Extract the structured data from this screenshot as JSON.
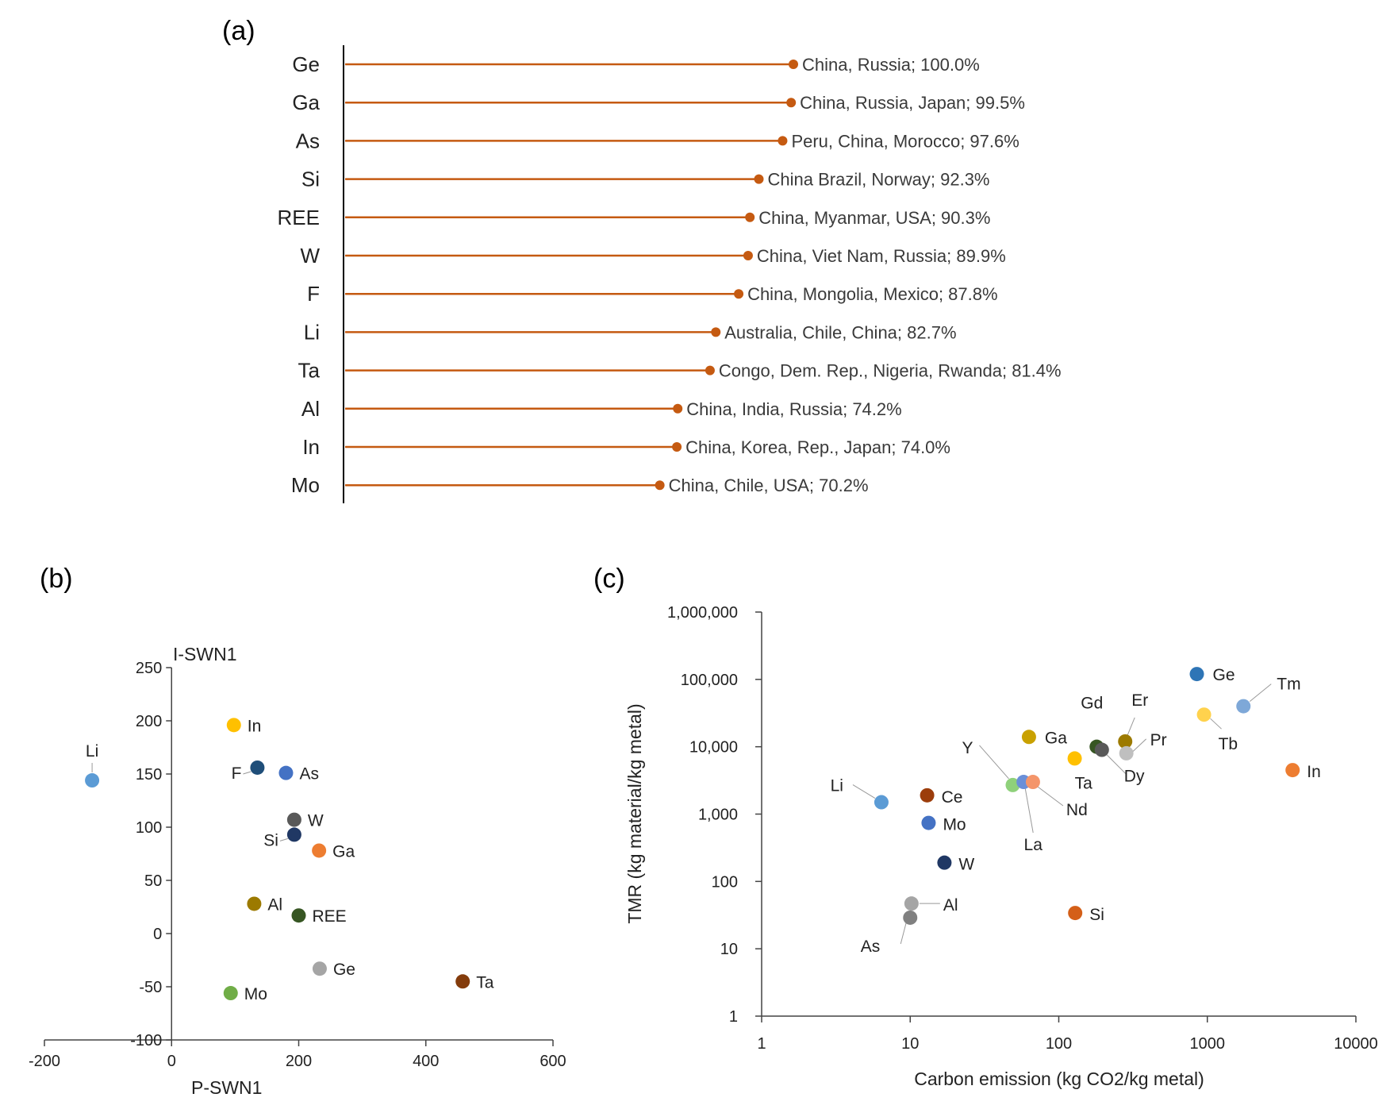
{
  "chart_data": [
    {
      "panel": "(a)",
      "type": "bar",
      "subtype": "lollipop",
      "color": "#C55A11",
      "xlim": [
        0,
        100
      ],
      "categories": [
        "Ge",
        "Ga",
        "As",
        "Si",
        "REE",
        "W",
        "F",
        "Li",
        "Ta",
        "Al",
        "In",
        "Mo"
      ],
      "values": [
        100.0,
        99.5,
        97.6,
        92.3,
        90.3,
        89.9,
        87.8,
        82.7,
        81.4,
        74.2,
        74.0,
        70.2
      ],
      "labels": [
        "China, Russia; 100.0%",
        "China, Russia, Japan; 99.5%",
        "Peru, China, Morocco; 97.6%",
        "China Brazil, Norway; 92.3%",
        "China, Myanmar, USA; 90.3%",
        "China, Viet Nam, Russia; 89.9%",
        "China, Mongolia, Mexico; 87.8%",
        "Australia, Chile, China; 82.7%",
        "Congo, Dem. Rep., Nigeria, Rwanda; 81.4%",
        "China, India, Russia; 74.2%",
        "China, Korea, Rep., Japan; 74.0%",
        "China, Chile, USA; 70.2%"
      ]
    },
    {
      "panel": "(b)",
      "type": "scatter",
      "xlabel": "P-SWN1",
      "ylabel": "I-SWN1",
      "xlim": [
        -200,
        600
      ],
      "ylim": [
        -100,
        250
      ],
      "xticks": [
        -200,
        0,
        200,
        400,
        600
      ],
      "yticks": [
        250,
        200,
        150,
        100,
        50,
        0,
        -50,
        -100
      ],
      "points": [
        {
          "label": "Li",
          "x": -125,
          "y": 144,
          "color": "#5B9BD5"
        },
        {
          "label": "In",
          "x": 98,
          "y": 196,
          "color": "#FFC000"
        },
        {
          "label": "F",
          "x": 135,
          "y": 156,
          "color": "#1F4E79"
        },
        {
          "label": "As",
          "x": 180,
          "y": 151,
          "color": "#4472C4"
        },
        {
          "label": "W",
          "x": 193,
          "y": 107,
          "color": "#595959"
        },
        {
          "label": "Si",
          "x": 193,
          "y": 93,
          "color": "#203864"
        },
        {
          "label": "Ga",
          "x": 232,
          "y": 78,
          "color": "#ED7D31"
        },
        {
          "label": "Al",
          "x": 130,
          "y": 28,
          "color": "#9C7A00"
        },
        {
          "label": "REE",
          "x": 200,
          "y": 17,
          "color": "#375623"
        },
        {
          "label": "Ge",
          "x": 233,
          "y": -33,
          "color": "#A5A5A5"
        },
        {
          "label": "Ta",
          "x": 458,
          "y": -45,
          "color": "#843C0C"
        },
        {
          "label": "Mo",
          "x": 93,
          "y": -56,
          "color": "#70AD47"
        }
      ]
    },
    {
      "panel": "(c)",
      "type": "scatter",
      "scale": "log-log",
      "xlabel": "Carbon emission (kg CO2/kg metal)",
      "ylabel": "TMR (kg material/kg metal)",
      "xlim": [
        1,
        10000
      ],
      "ylim": [
        1,
        1000000
      ],
      "xticks": [
        "1",
        "10",
        "100",
        "1000",
        "10000"
      ],
      "yticks": [
        "1",
        "10",
        "100",
        "1,000",
        "10,000",
        "100,000",
        "1,000,000"
      ],
      "points": [
        {
          "label": "Ge",
          "x": 850,
          "y": 120000,
          "color": "#2E75B6"
        },
        {
          "label": "Tm",
          "x": 1750,
          "y": 40000,
          "color": "#7EA8D8"
        },
        {
          "label": "Tb",
          "x": 950,
          "y": 30000,
          "color": "#FFD24D"
        },
        {
          "label": "Er",
          "x": 280,
          "y": 12000,
          "color": "#9C7A00"
        },
        {
          "label": "Pr",
          "x": 285,
          "y": 8000,
          "color": "#BFBFBF"
        },
        {
          "label": "Gd",
          "x": 180,
          "y": 10000,
          "color": "#375623"
        },
        {
          "label": "Dy",
          "x": 195,
          "y": 9000,
          "color": "#595959"
        },
        {
          "label": "Ga",
          "x": 63,
          "y": 14000,
          "color": "#C9A100"
        },
        {
          "label": "Ta",
          "x": 128,
          "y": 6700,
          "color": "#FFC000"
        },
        {
          "label": "Y",
          "x": 49,
          "y": 2700,
          "color": "#8FD17B"
        },
        {
          "label": "La",
          "x": 58,
          "y": 3000,
          "color": "#6A8FD8"
        },
        {
          "label": "Nd",
          "x": 67,
          "y": 3000,
          "color": "#F4956A"
        },
        {
          "label": "Li",
          "x": 6.4,
          "y": 1500,
          "color": "#5B9BD5"
        },
        {
          "label": "Ce",
          "x": 13,
          "y": 1900,
          "color": "#9C3D0B"
        },
        {
          "label": "Mo",
          "x": 13.3,
          "y": 740,
          "color": "#4472C4"
        },
        {
          "label": "W",
          "x": 17,
          "y": 190,
          "color": "#203864"
        },
        {
          "label": "Al",
          "x": 10.2,
          "y": 47,
          "color": "#A5A5A5"
        },
        {
          "label": "As",
          "x": 10,
          "y": 29,
          "color": "#808080"
        },
        {
          "label": "Si",
          "x": 129,
          "y": 34,
          "color": "#D45F18"
        },
        {
          "label": "In",
          "x": 3750,
          "y": 4500,
          "color": "#ED7D31"
        }
      ]
    }
  ]
}
